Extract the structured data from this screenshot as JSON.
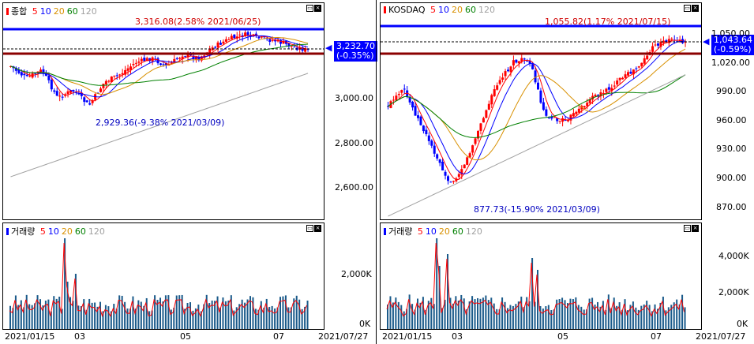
{
  "colors": {
    "up": "#ff0000",
    "down": "#0000ff",
    "ma5": "#ff0000",
    "ma10": "#0000ff",
    "ma20": "#d89000",
    "ma60": "#008000",
    "ma120": "#a0a0a0",
    "highline": "#0000ff",
    "lowline": "#8b0000"
  },
  "icons": [
    "minimize-icon",
    "close-icon",
    "price-arrow-icon"
  ],
  "left": {
    "title": "종합",
    "ma": [
      "5",
      "10",
      "20",
      "60",
      "120"
    ],
    "volume_title": "거래량",
    "high_note": "3,316.08(2.58% 2021/06/25)",
    "low_note": "2,929.36(-9.38% 2021/03/09)",
    "price": "3,232.70",
    "change": "(-0.35%)",
    "yticks": [
      "3,000.00",
      "2,800.00",
      "2,600.00"
    ],
    "vticks": [
      "2,000K",
      "0K"
    ],
    "xticks": [
      "2021/01/15",
      "03",
      "05",
      "07",
      "2021/07/27"
    ]
  },
  "right": {
    "title": "KOSDAQ",
    "ma": [
      "5",
      "10",
      "20",
      "60",
      "120"
    ],
    "volume_title": "거래량",
    "high_note": "1,055.82(1.17% 2021/07/15)",
    "low_note": "877.73(-15.90% 2021/03/09)",
    "price": "1,043.64",
    "change": "(-0.59%)",
    "yticks": [
      "1,050.00",
      "1,020.00",
      "990.00",
      "960.00",
      "930.00",
      "900.00",
      "870.00"
    ],
    "vticks": [
      "4,000K",
      "2,000K",
      "0K"
    ],
    "xticks": [
      "2021/01/15",
      "03",
      "05",
      "07",
      "2021/07/27"
    ]
  }
}
